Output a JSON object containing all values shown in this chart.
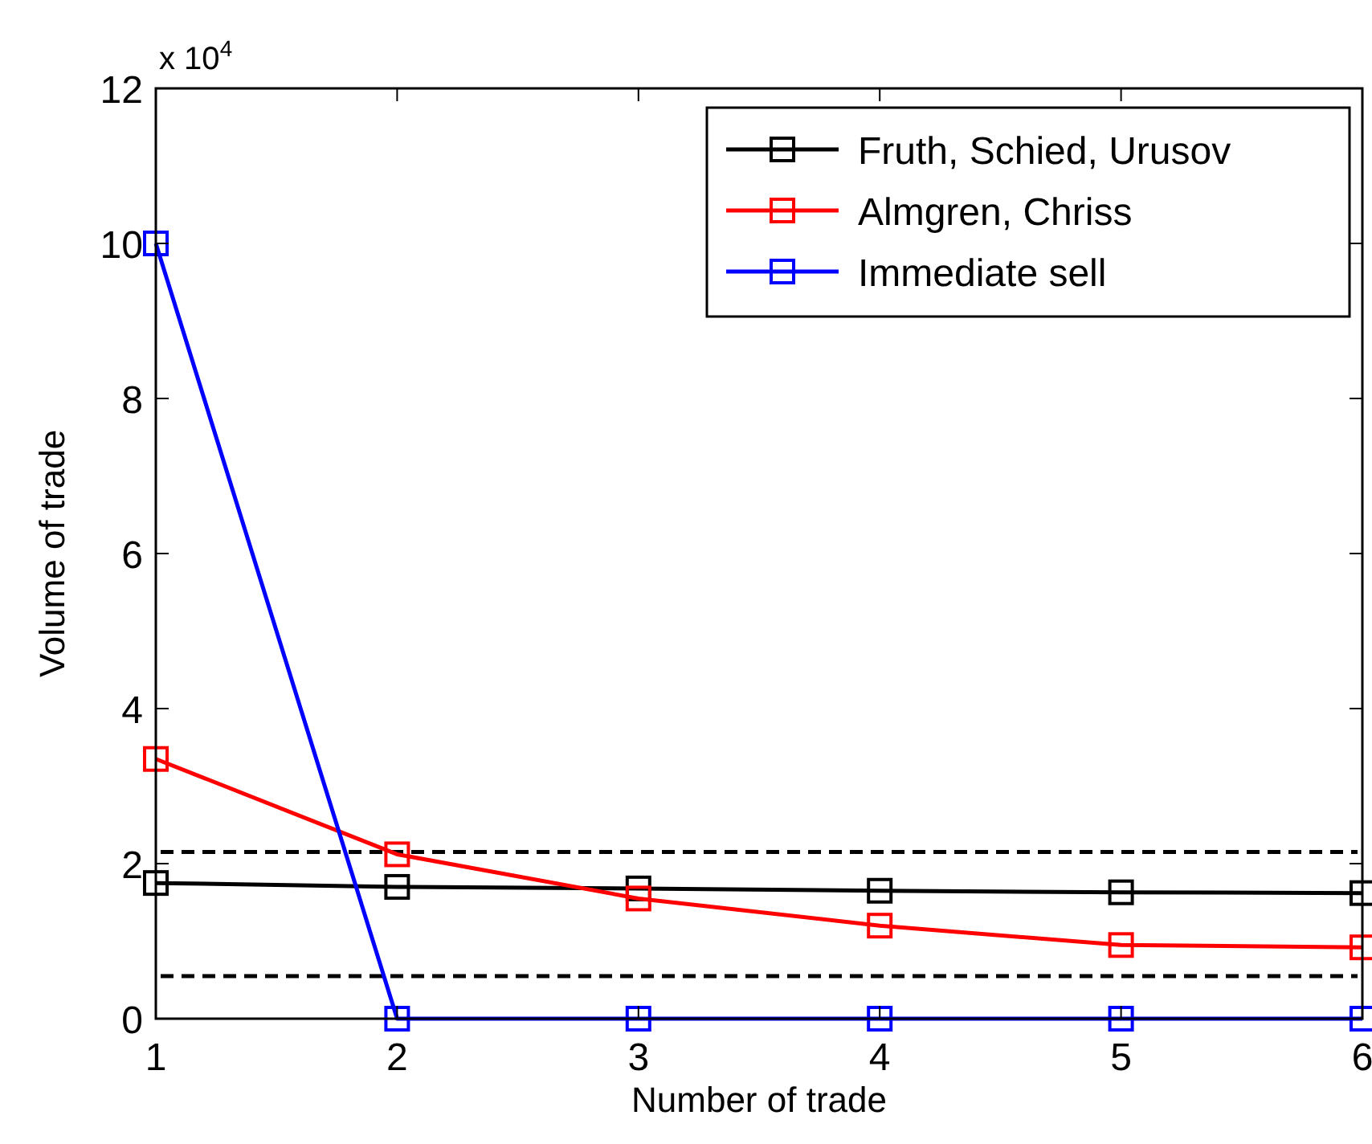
{
  "chart_data": {
    "type": "line",
    "xlabel": "Number of trade",
    "ylabel": "Volume of trade",
    "x": [
      1,
      2,
      3,
      4,
      5,
      6
    ],
    "series": [
      {
        "name": "Fruth, Schied, Urusov",
        "color": "#000000",
        "values": [
          1.75,
          1.7,
          1.68,
          1.65,
          1.63,
          1.62
        ]
      },
      {
        "name": "Almgren, Chriss",
        "color": "#ff0000",
        "values": [
          3.35,
          2.12,
          1.55,
          1.2,
          0.95,
          0.92
        ]
      },
      {
        "name": "Immediate sell",
        "color": "#0000ff",
        "values": [
          10,
          0,
          0,
          0,
          0,
          0
        ]
      }
    ],
    "xlim": [
      1,
      6
    ],
    "xticks": [
      1,
      2,
      3,
      4,
      5,
      6
    ],
    "ylim": [
      0,
      12
    ],
    "yticks": [
      0,
      2,
      4,
      6,
      8,
      10,
      12
    ],
    "ref_lines": [
      {
        "axis": "y",
        "value": 2.15,
        "color": "#000000",
        "line_style": "dashed"
      },
      {
        "axis": "y",
        "value": 0.55,
        "color": "#000000",
        "line_style": "dashed"
      }
    ],
    "annotations": [
      "x 10$^{4}$"
    ],
    "marker": "square",
    "line_style": "solid",
    "legend": "top right",
    "grid": false
  }
}
